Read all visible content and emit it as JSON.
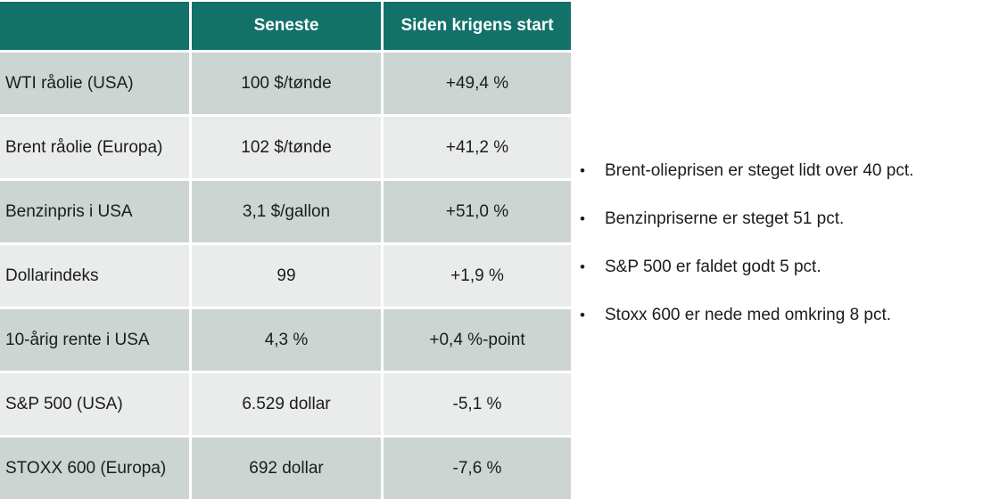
{
  "table": {
    "headers": [
      "",
      "Seneste",
      "Siden krigens start"
    ],
    "rows": [
      {
        "label": "WTI råolie (USA)",
        "latest": "100 $/tønde",
        "change": "+49,4 %"
      },
      {
        "label": "Brent råolie (Europa)",
        "latest": "102 $/tønde",
        "change": "+41,2 %"
      },
      {
        "label": "Benzinpris i USA",
        "latest": "3,1 $/gallon",
        "change": "+51,0 %"
      },
      {
        "label": "Dollarindeks",
        "latest": "99",
        "change": "+1,9 %"
      },
      {
        "label": "10-årig rente i USA",
        "latest": "4,3 %",
        "change": "+0,4 %-point"
      },
      {
        "label": "S&P 500 (USA)",
        "latest": "6.529 dollar",
        "change": "-5,1 %"
      },
      {
        "label": "STOXX 600 (Europa)",
        "latest": "692 dollar",
        "change": "-7,6 %"
      }
    ]
  },
  "bullets": {
    "marker": "•",
    "items": [
      "Brent-olieprisen er steget lidt over 40 pct.",
      "Benzinpriserne er steget 51 pct.",
      "S&P 500 er faldet godt 5 pct.",
      "Stoxx 600 er nede med omkring 8 pct."
    ]
  },
  "colors": {
    "header_bg": "#12726a",
    "header_text": "#ffffff",
    "row_dark": "#cdd5d3",
    "row_light": "#e9eceb",
    "body_text": "#1c1c1c"
  }
}
